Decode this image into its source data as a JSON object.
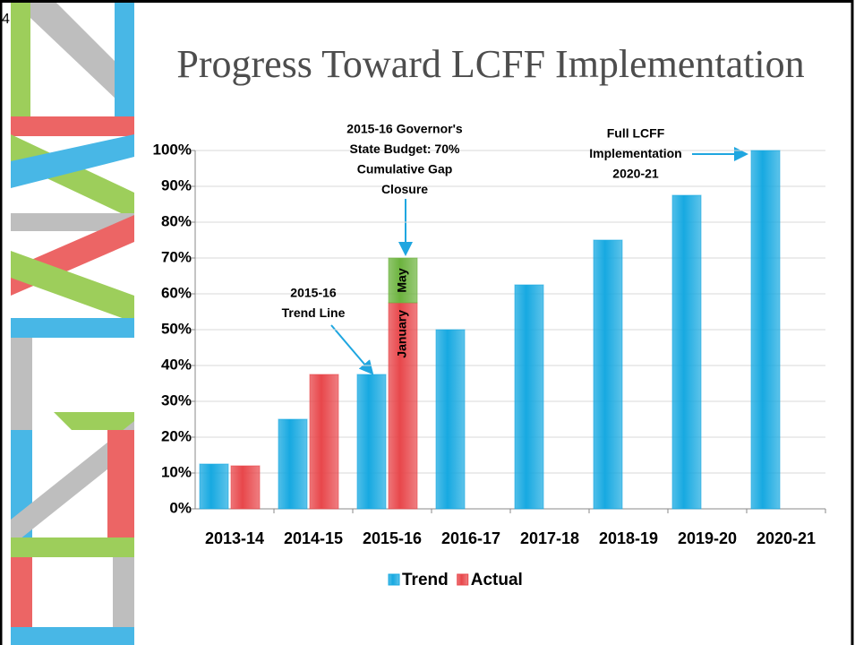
{
  "page_number": "4",
  "chart_data": {
    "type": "bar",
    "title": "Progress Toward LCFF Implementation",
    "categories": [
      "2013-14",
      "2014-15",
      "2015-16",
      "2016-17",
      "2017-18",
      "2018-19",
      "2019-20",
      "2020-21"
    ],
    "series": [
      {
        "name": "Trend",
        "color": "#17a9e1",
        "values": [
          12.5,
          25,
          37.5,
          50,
          62.5,
          75,
          87.5,
          100
        ]
      },
      {
        "name": "Actual",
        "color": "#e8474b",
        "values": [
          12,
          37.5,
          57.5,
          null,
          null,
          null,
          null,
          null
        ],
        "bar_labels": [
          null,
          null,
          "January",
          null,
          null,
          null,
          null,
          null
        ]
      },
      {
        "name": "May",
        "color": "#6cb33e",
        "values": [
          null,
          null,
          12.5,
          null,
          null,
          null,
          null,
          null
        ],
        "stacked_on": 1,
        "in_legend": false
      }
    ],
    "ylim": [
      0,
      100
    ],
    "yticks": [
      {
        "value": 0,
        "label": "0%"
      },
      {
        "value": 10,
        "label": "10%"
      },
      {
        "value": 20,
        "label": "20%"
      },
      {
        "value": 30,
        "label": "30%"
      },
      {
        "value": 40,
        "label": "40%"
      },
      {
        "value": 50,
        "label": "50%"
      },
      {
        "value": 60,
        "label": "60%"
      },
      {
        "value": 70,
        "label": "70%"
      },
      {
        "value": 80,
        "label": "80%"
      },
      {
        "value": 90,
        "label": "90%"
      },
      {
        "value": 100,
        "label": "100%"
      }
    ],
    "grid": true,
    "legend": "bottom",
    "annotations": [
      {
        "lines": [
          "2015-16 Governor's",
          "State Budget: 70%",
          "Cumulative Gap",
          "Closure"
        ]
      },
      {
        "lines": [
          "2015-16",
          "Trend Line"
        ]
      },
      {
        "lines": [
          "Full LCFF",
          "Implementation",
          "2020-21"
        ]
      }
    ]
  }
}
